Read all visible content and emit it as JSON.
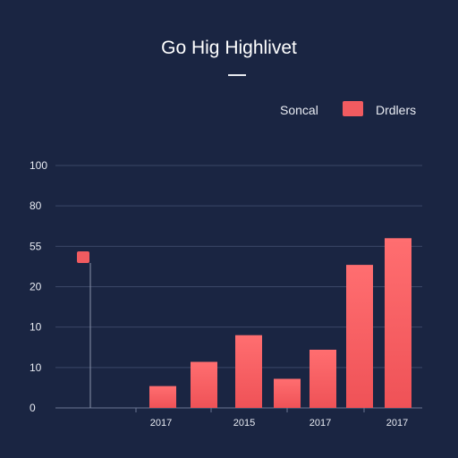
{
  "colors": {
    "background": "#1a2542",
    "bar": "#f15b60",
    "bar_top": "#ff6e70",
    "grid": "#3b4767",
    "text": "#e9ecf3"
  },
  "legend": {
    "left_label": "Soncal",
    "right_label": "Drdlers"
  },
  "chart_data": {
    "type": "bar",
    "title": "Go Hig Highlivet",
    "xlabel": "",
    "ylabel": "",
    "y_ticks": [
      "100",
      "80",
      "55",
      "20",
      "10",
      "10",
      "0"
    ],
    "x_tick_labels": [
      "2017",
      "2015",
      "2017",
      "2017"
    ],
    "ylim": [
      0,
      100
    ],
    "grid": true,
    "legend_position": "top-right",
    "values": [
      9,
      19,
      30,
      12,
      24,
      45,
      59,
      70
    ],
    "marker": {
      "value": 62
    }
  }
}
